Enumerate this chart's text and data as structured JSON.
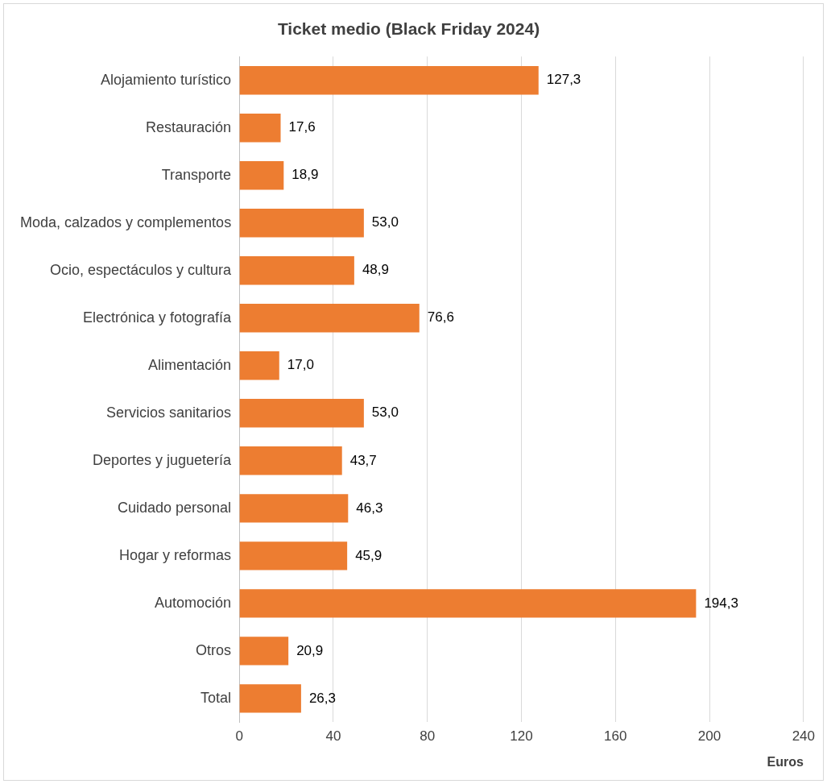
{
  "chart_data": {
    "type": "bar",
    "orientation": "horizontal",
    "title": "Ticket medio (Black Friday 2024)",
    "xlabel": "Euros",
    "categories": [
      "Alojamiento turístico",
      "Restauración",
      "Transporte",
      "Moda, calzados y complementos",
      "Ocio, espectáculos y cultura",
      "Electrónica y fotografía",
      "Alimentación",
      "Servicios sanitarios",
      "Deportes y juguetería",
      "Cuidado personal",
      "Hogar y reformas",
      "Automoción",
      "Otros",
      "Total"
    ],
    "values": [
      127.3,
      17.6,
      18.9,
      53.0,
      48.9,
      76.6,
      17.0,
      53.0,
      43.7,
      46.3,
      45.9,
      194.3,
      20.9,
      26.3
    ],
    "value_labels": [
      "127,3",
      "17,6",
      "18,9",
      "53,0",
      "48,9",
      "76,6",
      "17,0",
      "53,0",
      "43,7",
      "46,3",
      "45,9",
      "194,3",
      "20,9",
      "26,3"
    ],
    "color": "#ed7d31",
    "xlim": [
      0,
      240
    ],
    "xticks": [
      0,
      40,
      80,
      120,
      160,
      200,
      240
    ],
    "grid": "x",
    "legend": false
  }
}
